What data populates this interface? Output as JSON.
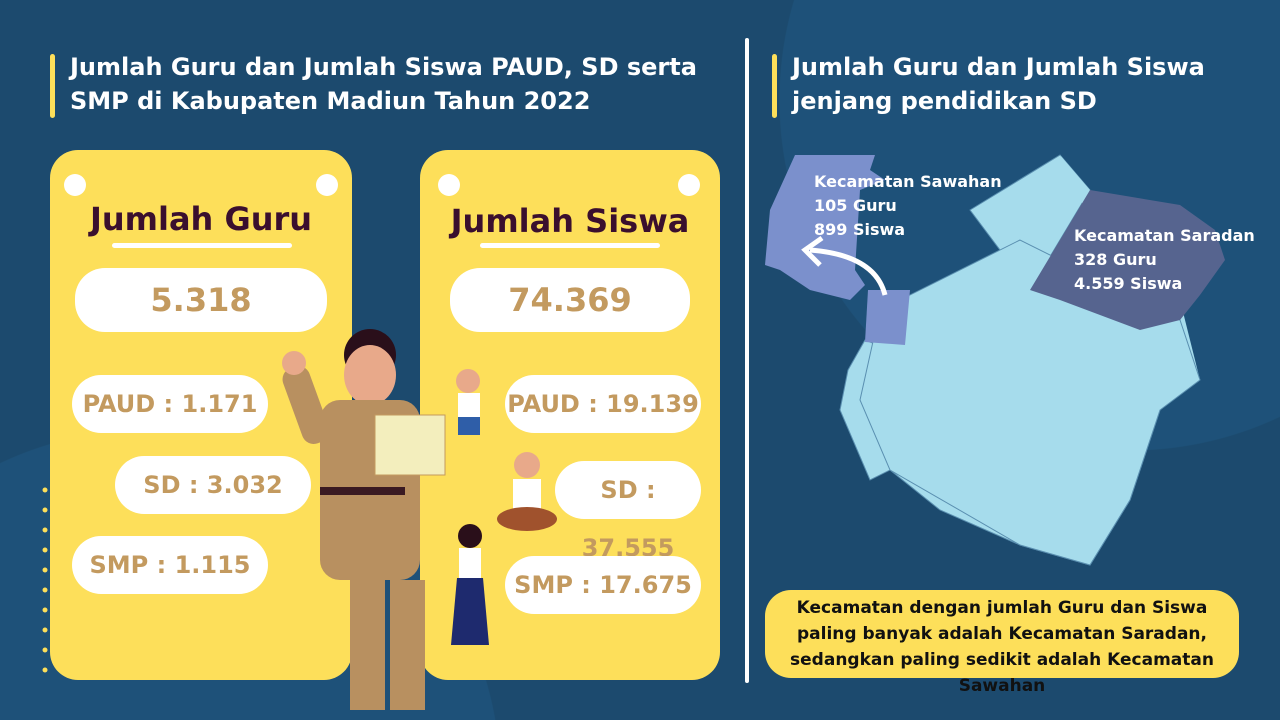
{
  "left": {
    "title": "Jumlah Guru dan Jumlah Siswa PAUD, SD serta SMP di Kabupaten Madiun Tahun 2022"
  },
  "guru": {
    "title": "Jumlah Guru",
    "total": "5.318",
    "paud": "PAUD : 1.171",
    "sd": "SD : 3.032",
    "smp": "SMP : 1.115"
  },
  "siswa": {
    "title": "Jumlah Siswa",
    "total": "74.369",
    "paud": "PAUD : 19.139",
    "sd": "SD : 37.555",
    "smp": "SMP : 17.675"
  },
  "right": {
    "title": "Jumlah Guru dan Jumlah Siswa jenjang pendidikan SD"
  },
  "map": {
    "sawahan": {
      "name": "Kecamatan Sawahan",
      "guru": "105 Guru",
      "siswa": "899 Siswa"
    },
    "saradan": {
      "name": "Kecamatan Saradan",
      "guru": "328 Guru",
      "siswa": "4.559 Siswa"
    }
  },
  "note": "Kecamatan dengan jumlah Guru dan Siswa paling banyak adalah Kecamatan Saradan, sedangkan paling sedikit adalah Kecamatan Sawahan",
  "colors": {
    "background": "#1c4a6e",
    "card": "#fddf5a",
    "value": "#c39a5f",
    "map": "#a6dcec",
    "sawahan": "#7b90cc",
    "saradan": "#56648f"
  }
}
